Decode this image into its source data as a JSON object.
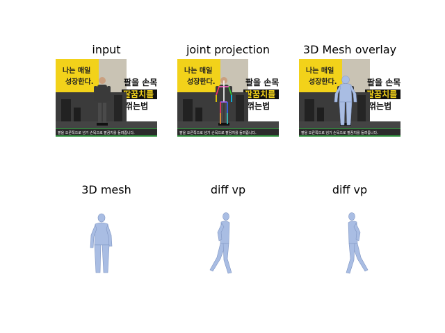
{
  "panels": [
    {
      "title": "input"
    },
    {
      "title": "joint projection"
    },
    {
      "title": "3D Mesh overlay"
    },
    {
      "title": "3D mesh"
    },
    {
      "title": "diff vp"
    },
    {
      "title": "diff vp"
    }
  ],
  "photo": {
    "banner_left_text": "나는 매일 성장한다.",
    "banner_right_text": "팔을 손목 팔꿈치를 꺾는법",
    "caption_text": "팔을 오른쪽으로 넘기 손목으로 팔꿈치를 돌려줍니다."
  },
  "colors": {
    "mesh": "#a9bde3",
    "mesh_shadow": "#7f95c2",
    "gym_yellow": "#f2d21a",
    "gym_dark": "#2b2b2b",
    "gym_green": "#2f8f3c"
  },
  "icons": [
    "person-photo",
    "skeleton-overlay",
    "mesh-overlay",
    "mesh-figure"
  ]
}
